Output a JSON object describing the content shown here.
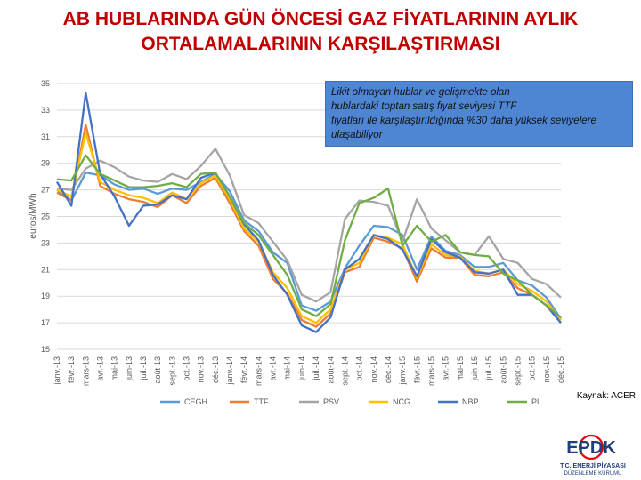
{
  "title_lines": [
    "AB HUBLARINDA GÜN ÖNCESİ GAZ FİYATLARININ AYLIK",
    "ORTALAMALARININ KARŞILAŞTIRMASI"
  ],
  "note_lines": [
    "Likit olmayan hublar ve gelişmekte olan",
    " hublardaki toptan satış fiyat seviyesi TTF",
    "fiyatları ile karşılaştırıldığında %30 daha yüksek seviyelere",
    "ulaşabiliyor"
  ],
  "source": "Kaynak: ACER",
  "logo": {
    "mark": "EPDK",
    "line1": "T.C. ENERJİ PİYASASI",
    "line2": "DÜZENLEME KURUMU"
  },
  "chart_data": {
    "type": "line",
    "ylabel": "euros/MWh",
    "ylim": [
      15,
      35
    ],
    "yticks": [
      15,
      17,
      19,
      21,
      23,
      25,
      27,
      29,
      31,
      33,
      35
    ],
    "grid": true,
    "legend_position": "bottom",
    "categories": [
      "janv.-13",
      "févr.-13",
      "mars-13",
      "avr.-13",
      "mai-13",
      "juin-13",
      "juil.-13",
      "août-13",
      "sept.-13",
      "oct.-13",
      "nov.-13",
      "déc.-13",
      "janv.-14",
      "févr.-14",
      "mars-14",
      "avr.-14",
      "mai-14",
      "juin-14",
      "juil.-14",
      "août-14",
      "sept.-14",
      "oct.-14",
      "nov.-14",
      "déc.-14",
      "janv.-15",
      "févr.-15",
      "mars-15",
      "avr.-15",
      "mai-15",
      "juin-15",
      "juil.-15",
      "août-15",
      "sept.-15",
      "oct.-15",
      "nov.-15",
      "déc.-15"
    ],
    "series": [
      {
        "name": "CEGH",
        "color": "#5b9bd5",
        "values": [
          27.0,
          26.2,
          28.3,
          28.1,
          27.4,
          27.0,
          27.1,
          26.7,
          27.1,
          27.0,
          27.6,
          28.2,
          26.9,
          24.7,
          23.9,
          22.3,
          21.5,
          18.3,
          17.9,
          18.6,
          21.1,
          22.8,
          24.3,
          24.2,
          23.6,
          21.0,
          23.5,
          22.4,
          22.1,
          21.2,
          21.2,
          21.5,
          20.2,
          19.8,
          18.9,
          17.3
        ]
      },
      {
        "name": "TTF",
        "color": "#ed7d31",
        "values": [
          26.8,
          26.2,
          31.9,
          27.3,
          26.7,
          26.3,
          26.1,
          25.7,
          26.6,
          26.0,
          27.3,
          27.9,
          26.0,
          23.9,
          22.8,
          20.3,
          19.2,
          17.2,
          16.7,
          17.7,
          20.8,
          21.2,
          23.4,
          23.1,
          22.6,
          20.1,
          22.6,
          21.9,
          21.9,
          20.6,
          20.5,
          20.8,
          19.6,
          19.1,
          18.3,
          17.0
        ]
      },
      {
        "name": "PSV",
        "color": "#a5a5a5",
        "values": [
          27.1,
          27.0,
          28.6,
          29.2,
          28.7,
          28.0,
          27.7,
          27.6,
          28.2,
          27.8,
          28.8,
          30.1,
          28.1,
          25.1,
          24.5,
          23.1,
          21.7,
          19.1,
          18.6,
          19.3,
          24.8,
          26.2,
          26.1,
          25.8,
          23.1,
          26.3,
          24.1,
          23.2,
          22.3,
          22.1,
          23.5,
          21.8,
          21.5,
          20.3,
          19.9,
          18.9
        ]
      },
      {
        "name": "NCG",
        "color": "#ffc000",
        "values": [
          27.0,
          26.5,
          31.3,
          27.6,
          27.0,
          26.6,
          26.4,
          26.0,
          26.8,
          26.3,
          27.5,
          28.1,
          26.3,
          24.1,
          23.1,
          20.8,
          19.6,
          17.5,
          17.0,
          18.0,
          21.0,
          21.5,
          23.6,
          23.4,
          22.9,
          20.4,
          22.9,
          22.1,
          22.0,
          20.9,
          20.7,
          21.0,
          19.9,
          19.4,
          18.6,
          17.2
        ]
      },
      {
        "name": "NBP",
        "color": "#4472c4",
        "values": [
          27.6,
          25.8,
          34.3,
          28.2,
          26.5,
          24.3,
          25.8,
          25.9,
          26.6,
          26.3,
          27.9,
          28.3,
          26.5,
          24.4,
          23.2,
          20.6,
          19.1,
          16.8,
          16.3,
          17.4,
          21.0,
          21.8,
          23.6,
          23.3,
          22.5,
          20.5,
          23.3,
          22.3,
          21.9,
          20.8,
          20.7,
          21.0,
          19.1,
          19.1,
          18.3,
          17.0
        ]
      },
      {
        "name": "PL",
        "color": "#70ad47",
        "values": [
          27.8,
          27.7,
          29.6,
          28.2,
          27.7,
          27.2,
          27.2,
          27.3,
          27.5,
          27.2,
          28.2,
          28.3,
          26.5,
          24.5,
          23.6,
          22.1,
          20.6,
          18.0,
          17.5,
          18.4,
          23.2,
          26.0,
          26.4,
          27.1,
          22.8,
          24.3,
          23.1,
          23.6,
          22.3,
          22.1,
          22.0,
          20.7,
          20.2,
          19.1,
          18.3,
          17.4
        ]
      }
    ]
  }
}
